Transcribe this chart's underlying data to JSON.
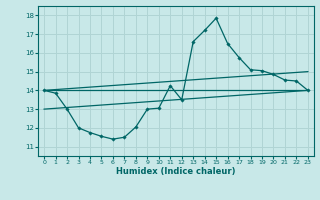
{
  "xlabel": "Humidex (Indice chaleur)",
  "bg_color": "#c8e8e8",
  "grid_color": "#b0d4d4",
  "line_color": "#006666",
  "xlim": [
    -0.5,
    23.5
  ],
  "ylim": [
    10.5,
    18.5
  ],
  "xticks": [
    0,
    1,
    2,
    3,
    4,
    5,
    6,
    7,
    8,
    9,
    10,
    11,
    12,
    13,
    14,
    15,
    16,
    17,
    18,
    19,
    20,
    21,
    22,
    23
  ],
  "yticks": [
    11,
    12,
    13,
    14,
    15,
    16,
    17,
    18
  ],
  "main_x": [
    0,
    1,
    2,
    3,
    4,
    5,
    6,
    7,
    8,
    9,
    10,
    11,
    12,
    13,
    14,
    15,
    16,
    17,
    18,
    19,
    20,
    21,
    22,
    23
  ],
  "main_y": [
    14.0,
    13.85,
    13.0,
    12.0,
    11.75,
    11.55,
    11.4,
    11.5,
    12.05,
    13.0,
    13.05,
    14.25,
    13.5,
    16.6,
    17.2,
    17.85,
    16.5,
    15.75,
    15.1,
    15.05,
    14.85,
    14.55,
    14.5,
    14.0
  ],
  "line1_x": [
    0,
    23
  ],
  "line1_y": [
    14.0,
    14.0
  ],
  "line2_x": [
    0,
    23
  ],
  "line2_y": [
    14.0,
    15.0
  ],
  "line3_x": [
    0,
    23
  ],
  "line3_y": [
    13.0,
    14.0
  ]
}
